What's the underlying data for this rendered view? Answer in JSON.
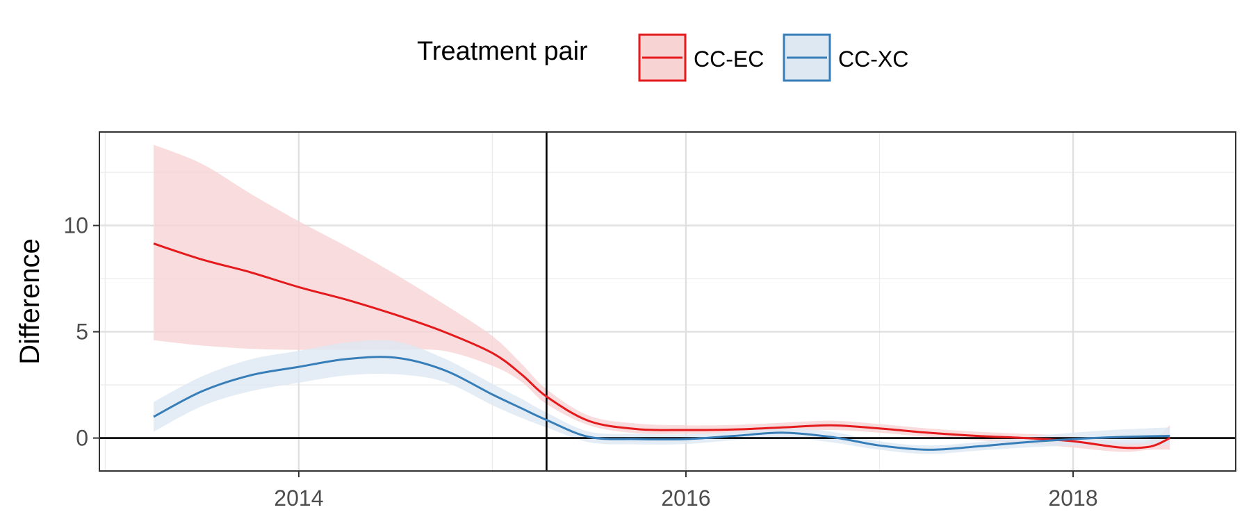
{
  "chart_data": {
    "type": "line",
    "title": "",
    "xlabel": "",
    "ylabel": "Difference",
    "legend": {
      "title": "Treatment pair",
      "position": "top"
    },
    "x_ticks": [
      "2014",
      "2016",
      "2018"
    ],
    "x_tick_values": [
      2014,
      2016,
      2018
    ],
    "y_ticks": [
      "0",
      "5",
      "10"
    ],
    "y_tick_values": [
      0,
      5,
      10
    ],
    "xlim": [
      2012.97,
      2018.84
    ],
    "ylim": [
      -1.55,
      14.4
    ],
    "grid": true,
    "reference_lines": {
      "vertical_x": 2015.28,
      "horizontal_y": 0
    },
    "series": [
      {
        "name": "CC-EC",
        "color": "#E41A1C",
        "fill": "#F8D3D4",
        "x": [
          2013.25,
          2013.5,
          2013.75,
          2014.0,
          2014.25,
          2014.5,
          2014.75,
          2015.0,
          2015.15,
          2015.28,
          2015.5,
          2015.75,
          2016.0,
          2016.25,
          2016.5,
          2016.75,
          2017.0,
          2017.25,
          2017.5,
          2017.75,
          2018.0,
          2018.25,
          2018.4,
          2018.5
        ],
        "y": [
          9.15,
          8.4,
          7.8,
          7.1,
          6.5,
          5.8,
          5.0,
          4.0,
          3.0,
          1.95,
          0.8,
          0.42,
          0.38,
          0.4,
          0.5,
          0.6,
          0.45,
          0.25,
          0.1,
          0.0,
          -0.15,
          -0.45,
          -0.4,
          0.0
        ],
        "lower": [
          4.6,
          4.35,
          4.2,
          4.15,
          4.15,
          4.15,
          4.1,
          3.4,
          2.65,
          1.6,
          0.6,
          0.22,
          0.2,
          0.22,
          0.3,
          0.38,
          0.25,
          0.05,
          -0.1,
          -0.25,
          -0.45,
          -0.65,
          -0.55,
          -0.55
        ],
        "upper": [
          13.8,
          12.9,
          11.5,
          10.2,
          9.0,
          7.7,
          6.3,
          4.8,
          3.5,
          2.3,
          1.05,
          0.68,
          0.6,
          0.62,
          0.72,
          0.82,
          0.66,
          0.45,
          0.3,
          0.2,
          0.1,
          -0.2,
          -0.1,
          0.6
        ]
      },
      {
        "name": "CC-XC",
        "color": "#377EB8",
        "fill": "#DDE8F3",
        "x": [
          2013.25,
          2013.5,
          2013.75,
          2014.0,
          2014.25,
          2014.5,
          2014.75,
          2015.0,
          2015.15,
          2015.28,
          2015.5,
          2015.75,
          2016.0,
          2016.25,
          2016.5,
          2016.75,
          2017.0,
          2017.25,
          2017.5,
          2017.75,
          2018.0,
          2018.25,
          2018.5
        ],
        "y": [
          1.0,
          2.2,
          2.95,
          3.35,
          3.72,
          3.78,
          3.2,
          2.05,
          1.4,
          0.85,
          0.05,
          -0.05,
          -0.05,
          0.1,
          0.25,
          0.05,
          -0.35,
          -0.55,
          -0.4,
          -0.2,
          -0.05,
          0.05,
          0.1
        ],
        "lower": [
          0.3,
          1.5,
          2.2,
          2.6,
          2.95,
          3.0,
          2.65,
          1.55,
          0.95,
          0.5,
          -0.2,
          -0.3,
          -0.28,
          -0.1,
          0.02,
          -0.2,
          -0.55,
          -0.75,
          -0.6,
          -0.45,
          -0.35,
          -0.3,
          -0.3
        ],
        "upper": [
          1.7,
          2.9,
          3.7,
          4.1,
          4.5,
          4.55,
          3.75,
          2.55,
          1.85,
          1.2,
          0.3,
          0.2,
          0.18,
          0.3,
          0.48,
          0.3,
          -0.15,
          -0.35,
          -0.2,
          0.05,
          0.25,
          0.4,
          0.5
        ]
      }
    ]
  }
}
